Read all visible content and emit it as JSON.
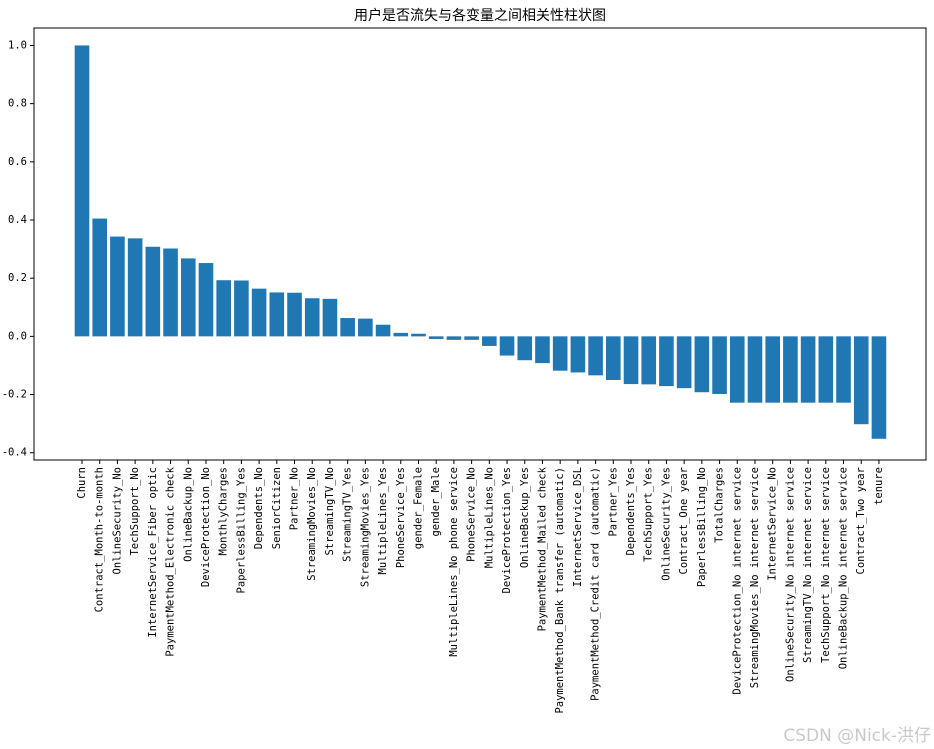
{
  "page": {
    "background": "#ffffff"
  },
  "watermark": {
    "text": "CSDN @Nick-洪仔",
    "color": "#c9c9c9"
  },
  "chart_data": {
    "type": "bar",
    "title": "用户是否流失与各变量之间相关性柱状图",
    "xlabel": "",
    "ylabel": "",
    "grid": false,
    "legend": null,
    "bar_color": "#1f77b4",
    "axis_color": "#000000",
    "x_tick_label_rotation": 90,
    "ylim": [
      -0.425,
      1.06
    ],
    "yticks": [
      1.0,
      0.8,
      0.6,
      0.4,
      0.2,
      0.0,
      -0.2,
      -0.4
    ],
    "categories": [
      "Churn",
      "Contract_Month-to-month",
      "OnlineSecurity_No",
      "TechSupport_No",
      "InternetService_Fiber optic",
      "PaymentMethod_Electronic check",
      "OnlineBackup_No",
      "DeviceProtection_No",
      "MonthlyCharges",
      "PaperlessBilling_Yes",
      "Dependents_No",
      "SeniorCitizen",
      "Partner_No",
      "StreamingMovies_No",
      "StreamingTV_No",
      "StreamingTV_Yes",
      "StreamingMovies_Yes",
      "MultipleLines_Yes",
      "PhoneService_Yes",
      "gender_Female",
      "gender_Male",
      "MultipleLines_No phone service",
      "PhoneService_No",
      "MultipleLines_No",
      "DeviceProtection_Yes",
      "OnlineBackup_Yes",
      "PaymentMethod_Mailed check",
      "PaymentMethod_Bank transfer (automatic)",
      "InternetService_DSL",
      "PaymentMethod_Credit card (automatic)",
      "Partner_Yes",
      "Dependents_Yes",
      "TechSupport_Yes",
      "OnlineSecurity_Yes",
      "Contract_One year",
      "PaperlessBilling_No",
      "TotalCharges",
      "DeviceProtection_No internet service",
      "StreamingMovies_No internet service",
      "InternetService_No",
      "OnlineSecurity_No internet service",
      "StreamingTV_No internet service",
      "TechSupport_No internet service",
      "OnlineBackup_No internet service",
      "Contract_Two year",
      "tenure"
    ],
    "values": [
      1.0,
      0.405,
      0.343,
      0.337,
      0.308,
      0.302,
      0.268,
      0.252,
      0.193,
      0.192,
      0.164,
      0.151,
      0.15,
      0.131,
      0.129,
      0.063,
      0.061,
      0.04,
      0.012,
      0.009,
      -0.009,
      -0.012,
      -0.012,
      -0.033,
      -0.066,
      -0.082,
      -0.092,
      -0.118,
      -0.124,
      -0.134,
      -0.15,
      -0.164,
      -0.165,
      -0.171,
      -0.178,
      -0.192,
      -0.198,
      -0.228,
      -0.228,
      -0.228,
      -0.228,
      -0.228,
      -0.228,
      -0.228,
      -0.302,
      -0.352
    ]
  }
}
